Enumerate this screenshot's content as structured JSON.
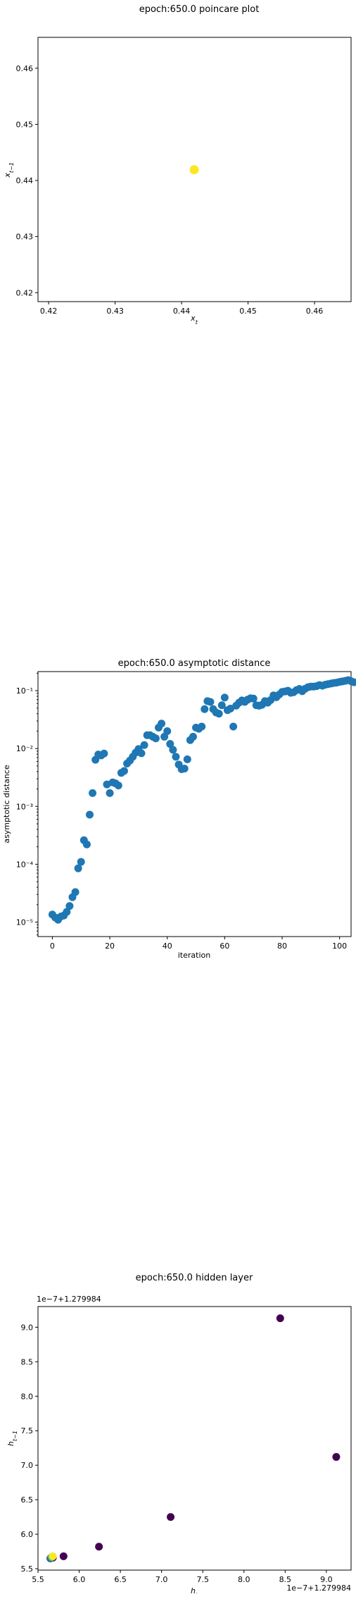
{
  "chart_data": [
    {
      "type": "scatter",
      "title": "epoch:650.0 poincare plot",
      "xlabel": "x_t",
      "ylabel": "x_{t-1}",
      "xlim": [
        0.4184,
        0.4655
      ],
      "ylim": [
        0.4184,
        0.4655
      ],
      "xticks": [
        "0.42",
        "0.43",
        "0.44",
        "0.45",
        "0.46"
      ],
      "yticks": [
        "0.42",
        "0.43",
        "0.44",
        "0.45",
        "0.46"
      ],
      "tick_values": [
        0.42,
        0.43,
        0.44,
        0.45,
        0.46
      ],
      "points": [
        {
          "x": 0.4419,
          "y": 0.4419
        }
      ],
      "point_color": "#fde725"
    },
    {
      "type": "scatter",
      "title": "epoch:650.0 asymptotic distance",
      "xlabel": "iteration",
      "ylabel": "asymptotic distance",
      "xlim": [
        -5,
        104
      ],
      "ylim_log10": [
        -5.25,
        -0.67
      ],
      "y_scale": "log",
      "xticks": [
        "0",
        "20",
        "40",
        "60",
        "80",
        "100"
      ],
      "xtick_values": [
        0,
        20,
        40,
        60,
        80,
        100
      ],
      "yticks": [
        "10⁻⁵",
        "10⁻⁴",
        "10⁻³",
        "10⁻²",
        "10⁻¹"
      ],
      "ytick_exponents": [
        -5,
        -4,
        -3,
        -2,
        -1
      ],
      "point_color": "#1f77b4",
      "y": [
        1.35e-05,
        1.2e-05,
        1.1e-05,
        1.25e-05,
        1.3e-05,
        1.5e-05,
        1.9e-05,
        2.7e-05,
        3.3e-05,
        8.5e-05,
        0.00011,
        0.00026,
        0.00022,
        0.00072,
        0.0017,
        0.0064,
        0.0079,
        0.0076,
        0.0082,
        0.0024,
        0.0017,
        0.0026,
        0.0025,
        0.0023,
        0.0038,
        0.0041,
        0.0055,
        0.0062,
        0.0072,
        0.0085,
        0.0098,
        0.0083,
        0.0115,
        0.017,
        0.017,
        0.016,
        0.015,
        0.023,
        0.027,
        0.016,
        0.02,
        0.012,
        0.0095,
        0.0072,
        0.0053,
        0.0044,
        0.0045,
        0.0065,
        0.014,
        0.016,
        0.023,
        0.022,
        0.024,
        0.048,
        0.066,
        0.064,
        0.048,
        0.042,
        0.04,
        0.056,
        0.076,
        0.046,
        0.049,
        0.024,
        0.055,
        0.062,
        0.068,
        0.064,
        0.07,
        0.074,
        0.073,
        0.056,
        0.055,
        0.057,
        0.066,
        0.062,
        0.069,
        0.083,
        0.077,
        0.086,
        0.095,
        0.097,
        0.1,
        0.092,
        0.094,
        0.102,
        0.107,
        0.098,
        0.108,
        0.115,
        0.118,
        0.118,
        0.12,
        0.125,
        0.122,
        0.127,
        0.13,
        0.133,
        0.136,
        0.138,
        0.142,
        0.145,
        0.148,
        0.152,
        0.146,
        0.14
      ]
    },
    {
      "type": "scatter",
      "title": "epoch:650.0 hidden layer",
      "xlabel": "h_t",
      "ylabel": "h_{t-1}",
      "offset_x": "1e−7+1.279984",
      "offset_y": "1e−7+1.279984",
      "xlim": [
        5.5,
        9.3
      ],
      "ylim": [
        5.48,
        9.3
      ],
      "xticks": [
        "5.5",
        "6.0",
        "6.5",
        "7.0",
        "7.5",
        "8.0",
        "8.5",
        "9.0"
      ],
      "xtick_values": [
        5.5,
        6.0,
        6.5,
        7.0,
        7.5,
        8.0,
        8.5,
        9.0
      ],
      "yticks": [
        "5.5",
        "6.0",
        "6.5",
        "7.0",
        "7.5",
        "8.0",
        "8.5",
        "9.0"
      ],
      "ytick_values": [
        5.5,
        6.0,
        6.5,
        7.0,
        7.5,
        8.0,
        8.5,
        9.0
      ],
      "points": [
        {
          "x": 9.12,
          "y": 7.12,
          "color": "#440154"
        },
        {
          "x": 8.44,
          "y": 9.13,
          "color": "#440154"
        },
        {
          "x": 7.11,
          "y": 6.25,
          "color": "#440154"
        },
        {
          "x": 6.24,
          "y": 5.82,
          "color": "#440154"
        },
        {
          "x": 5.81,
          "y": 5.68,
          "color": "#440154"
        },
        {
          "x": 5.68,
          "y": 5.66,
          "color": "#440154"
        },
        {
          "x": 5.65,
          "y": 5.65,
          "color": "#3b528b"
        },
        {
          "x": 5.66,
          "y": 5.66,
          "color": "#21918c"
        },
        {
          "x": 5.67,
          "y": 5.67,
          "color": "#5ec962"
        },
        {
          "x": 5.68,
          "y": 5.68,
          "color": "#fde725"
        }
      ]
    }
  ]
}
